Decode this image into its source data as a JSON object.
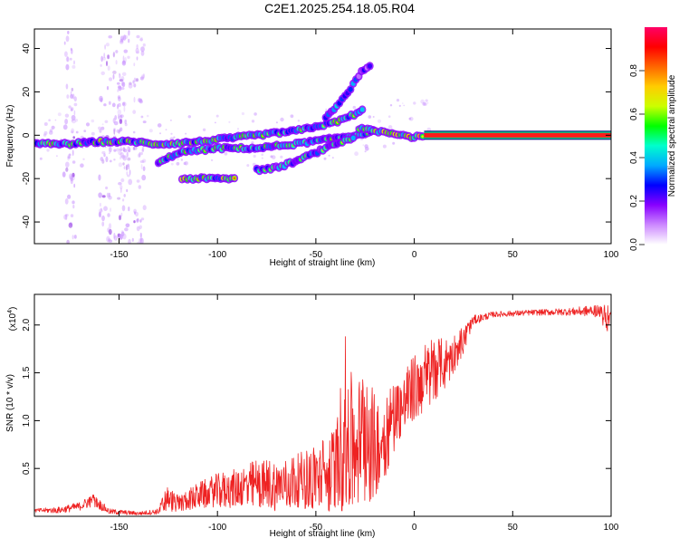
{
  "title": "C2E1.2025.254.18.05.R04",
  "colors": {
    "snr_line": "#ee2222",
    "axis": "#000000",
    "background": "#ffffff"
  },
  "chart_data": [
    {
      "type": "heatmap",
      "name": "spectrogram",
      "xlabel": "Height of straight line (km)",
      "ylabel": "Frequency (Hz)",
      "xlim": [
        -193,
        100
      ],
      "ylim": [
        -50,
        49
      ],
      "xticks": [
        -150,
        -100,
        -50,
        0,
        50,
        100
      ],
      "xtick_labels": [
        "-150",
        "-100",
        "-50",
        "0",
        "50",
        "100"
      ],
      "yticks": [
        -40,
        -20,
        0,
        20,
        40
      ],
      "ytick_labels": [
        "-40",
        "-20",
        "0",
        "20",
        "40"
      ],
      "colorbar": {
        "label": "Normalized spectral amplitude",
        "range": [
          0,
          1
        ],
        "ticks": [
          0.0,
          0.2,
          0.4,
          0.6,
          0.8
        ],
        "tick_labels": [
          "0.0",
          "0.2",
          "0.4",
          "0.6",
          "0.8"
        ],
        "colormap": [
          "#ffffff",
          "#cc88ff",
          "#8800ff",
          "#0000ff",
          "#00aaff",
          "#00ffcc",
          "#00ff00",
          "#ccff00",
          "#ffcc00",
          "#ff6600",
          "#ff0000",
          "#ff0066"
        ]
      },
      "tracks": [
        {
          "label": "main",
          "points": [
            [
              -193,
              -4
            ],
            [
              -175,
              -4
            ],
            [
              -160,
              -3
            ],
            [
              -150,
              -3
            ],
            [
              -140,
              -3
            ],
            [
              -135,
              -4
            ],
            [
              -125,
              -4
            ],
            [
              -110,
              -3
            ],
            [
              -100,
              -2
            ],
            [
              -80,
              0
            ],
            [
              -60,
              2
            ],
            [
              -50,
              4
            ],
            [
              -40,
              6
            ],
            [
              -32,
              9
            ],
            [
              -25,
              12
            ]
          ],
          "amp": 0.55
        },
        {
          "label": "lower-branch-1",
          "points": [
            [
              -130,
              -13
            ],
            [
              -120,
              -8
            ],
            [
              -100,
              -6
            ],
            [
              -80,
              -6
            ],
            [
              -60,
              -4
            ],
            [
              -45,
              -2
            ],
            [
              -30,
              0
            ],
            [
              -20,
              2
            ]
          ],
          "amp": 0.5
        },
        {
          "label": "lower-branch-2",
          "points": [
            [
              -80,
              -16
            ],
            [
              -70,
              -15
            ],
            [
              -60,
              -12
            ],
            [
              -50,
              -8
            ],
            [
              -40,
              -4
            ],
            [
              -30,
              -1
            ]
          ],
          "amp": 0.45
        },
        {
          "label": "bottom-branch",
          "points": [
            [
              -118,
              -20
            ],
            [
              -105,
              -20
            ],
            [
              -95,
              -20
            ],
            [
              -90,
              -20
            ]
          ],
          "amp": 0.6
        },
        {
          "label": "upper-branch",
          "points": [
            [
              -45,
              8
            ],
            [
              -38,
              15
            ],
            [
              -32,
              22
            ],
            [
              -28,
              28
            ],
            [
              -22,
              33
            ]
          ],
          "amp": 0.35
        },
        {
          "label": "merge",
          "points": [
            [
              -28,
              3
            ],
            [
              -20,
              2
            ],
            [
              -10,
              1
            ],
            [
              -5,
              0
            ],
            [
              0,
              -1
            ],
            [
              5,
              0
            ]
          ],
          "amp": 0.75
        },
        {
          "label": "carrier",
          "points": [
            [
              5,
              0
            ],
            [
              100,
              0
            ]
          ],
          "amp": 1.0
        }
      ],
      "noise_columns_km": [
        -175,
        -157,
        -150,
        -147,
        -140
      ]
    },
    {
      "type": "line",
      "name": "snr",
      "xlabel": "Height of straight line (km)",
      "ylabel": "SNR (10 * v/v)",
      "multiplier_label": "(x10",
      "multiplier_exponent": "4",
      "multiplier_close": ")",
      "xlim": [
        -193,
        100
      ],
      "ylim": [
        0,
        2.32
      ],
      "xticks": [
        -150,
        -100,
        -50,
        0,
        50,
        100
      ],
      "xtick_labels": [
        "-150",
        "-100",
        "-50",
        "0",
        "50",
        "100"
      ],
      "yticks": [
        0.5,
        1.0,
        1.5,
        2.0
      ],
      "ytick_labels": [
        "0.5",
        "1.0",
        "1.5",
        "2.0"
      ],
      "envelope": [
        [
          -193,
          0.04,
          0.08
        ],
        [
          -180,
          0.03,
          0.1
        ],
        [
          -170,
          0.06,
          0.15
        ],
        [
          -163,
          0.1,
          0.24
        ],
        [
          -155,
          0.02,
          0.08
        ],
        [
          -140,
          0.01,
          0.05
        ],
        [
          -130,
          0.02,
          0.08
        ],
        [
          -126,
          0.05,
          0.33
        ],
        [
          -120,
          0.05,
          0.22
        ],
        [
          -110,
          0.08,
          0.35
        ],
        [
          -100,
          0.1,
          0.45
        ],
        [
          -90,
          0.08,
          0.5
        ],
        [
          -80,
          0.1,
          0.6
        ],
        [
          -70,
          0.05,
          0.6
        ],
        [
          -60,
          0.1,
          0.65
        ],
        [
          -50,
          0.05,
          0.75
        ],
        [
          -40,
          0.05,
          0.95
        ],
        [
          -35,
          0.05,
          1.88
        ],
        [
          -30,
          0.1,
          1.25
        ],
        [
          -25,
          0.1,
          1.75
        ],
        [
          -20,
          0.2,
          1.25
        ],
        [
          -15,
          0.4,
          1.35
        ],
        [
          -10,
          0.7,
          1.45
        ],
        [
          -5,
          0.9,
          1.55
        ],
        [
          0,
          1.0,
          1.7
        ],
        [
          5,
          1.1,
          1.8
        ],
        [
          10,
          1.2,
          1.9
        ],
        [
          15,
          1.3,
          1.85
        ],
        [
          20,
          1.5,
          1.9
        ],
        [
          25,
          1.7,
          2.0
        ],
        [
          30,
          2.0,
          2.1
        ],
        [
          40,
          2.08,
          2.14
        ],
        [
          60,
          2.1,
          2.16
        ],
        [
          80,
          2.1,
          2.18
        ],
        [
          95,
          2.08,
          2.22
        ],
        [
          97,
          1.85,
          2.25
        ],
        [
          100,
          2.08,
          2.15
        ]
      ]
    }
  ]
}
